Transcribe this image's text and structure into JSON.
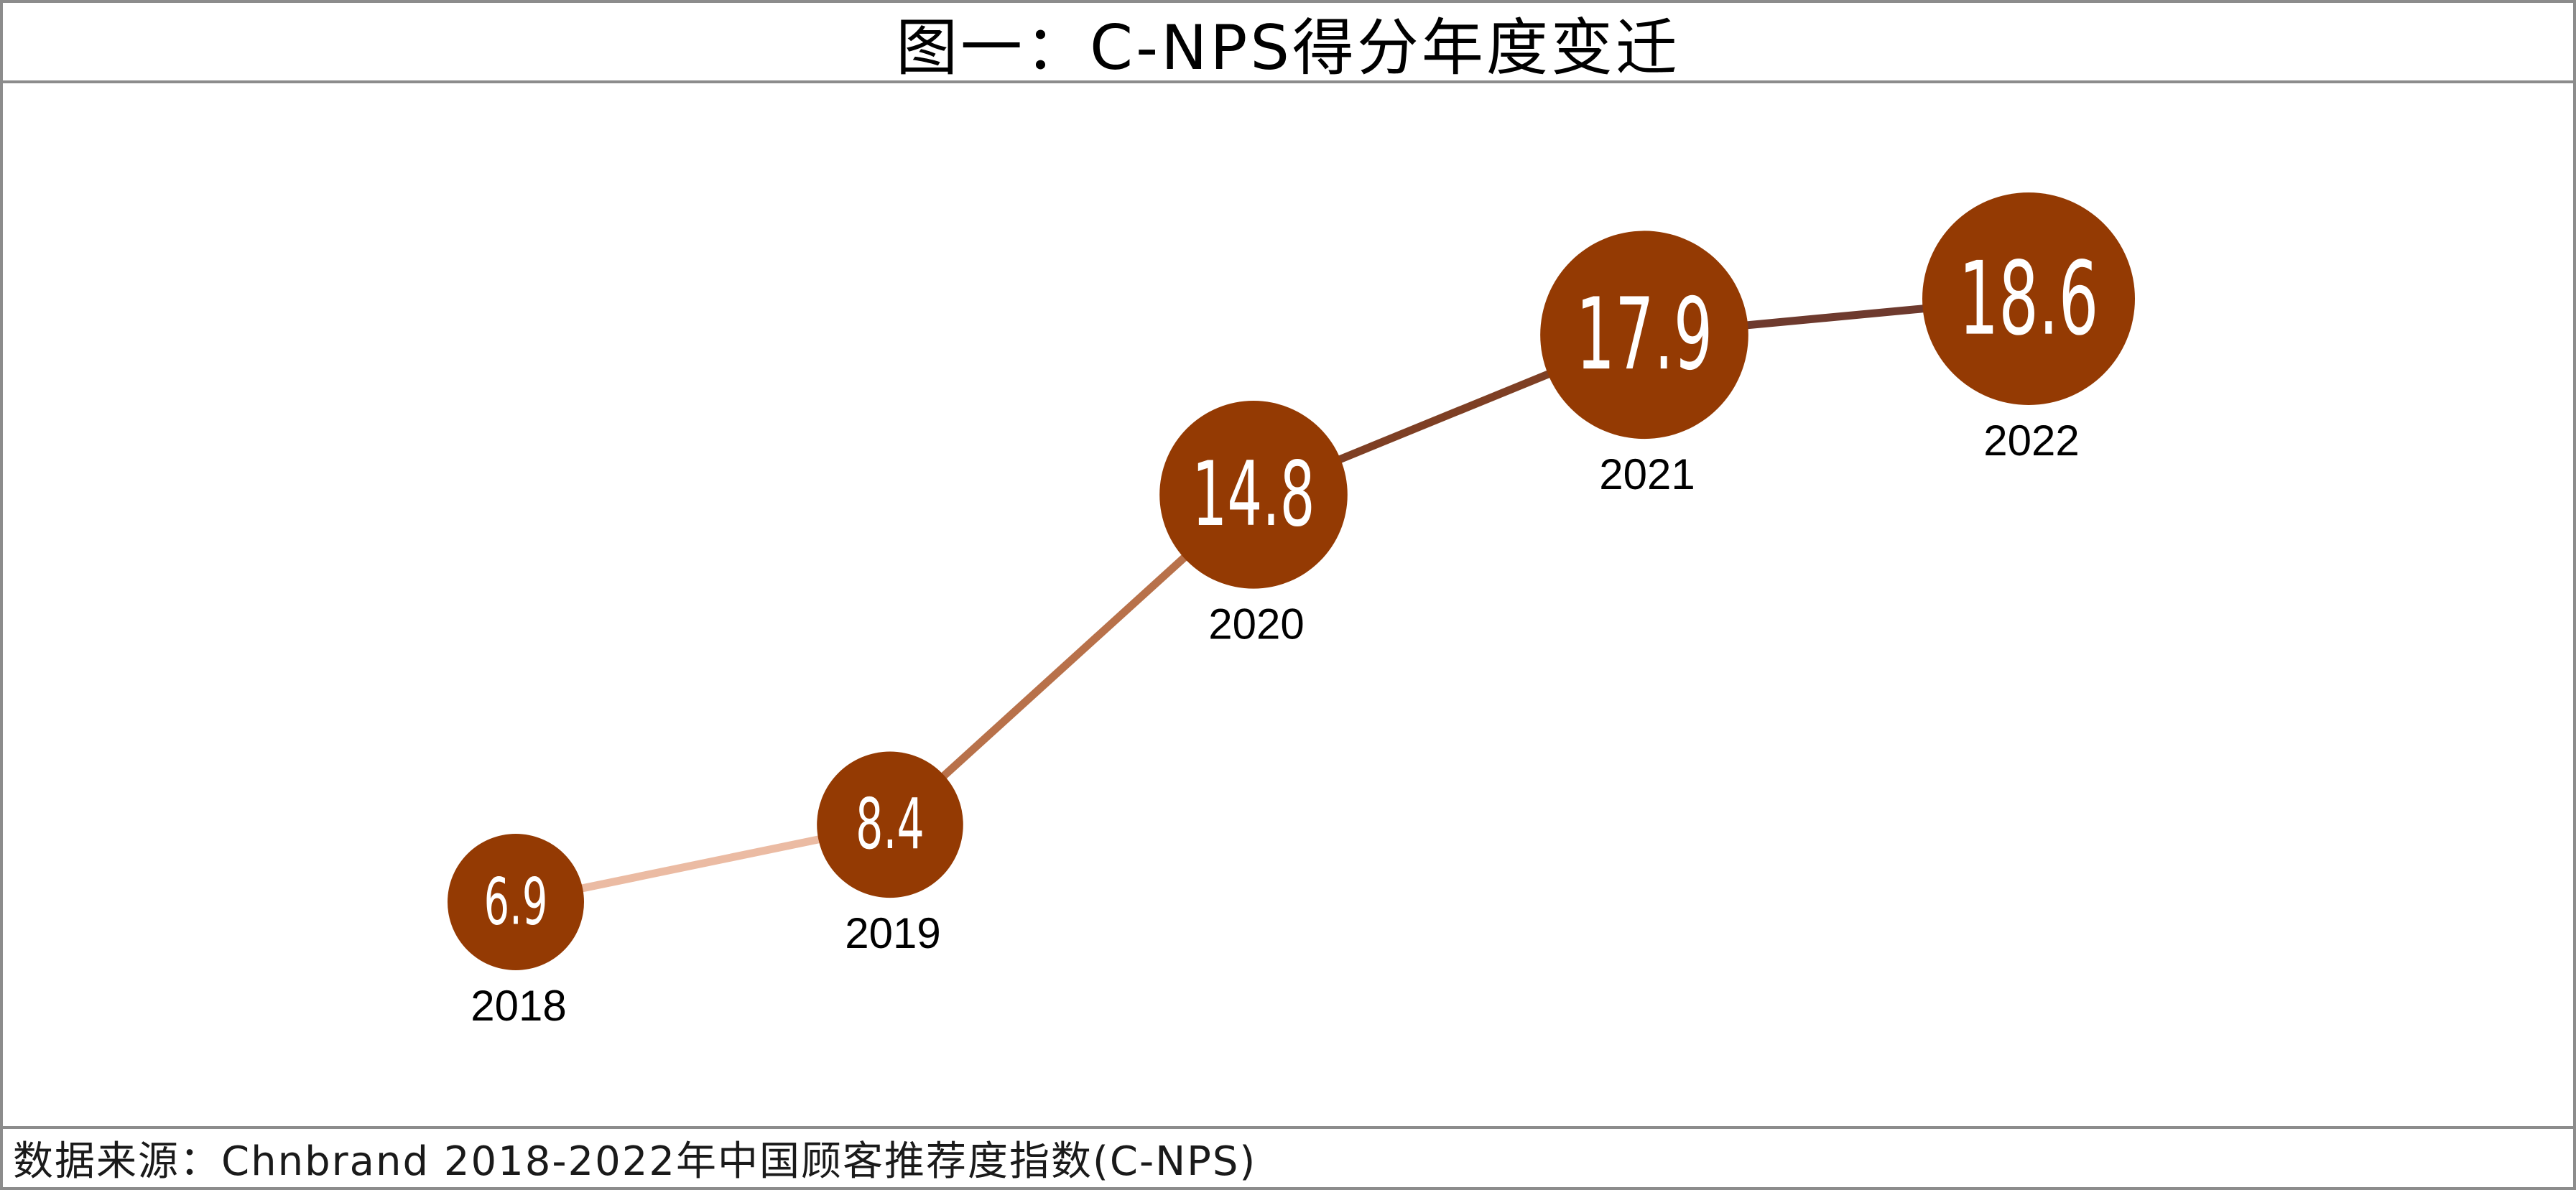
{
  "title": "图一：C-NPS得分年度变迁",
  "source": "数据来源：Chnbrand 2018-2022年中国顾客推荐度指数(C-NPS)",
  "colors": {
    "bubble": "#943a03",
    "segments": [
      "#ebbba3",
      "#b8714a",
      "#7e3f24",
      "#6e3a2e"
    ],
    "border": "#8c8c8c"
  },
  "chart_data": {
    "type": "line",
    "title": "图一：C-NPS得分年度变迁",
    "xlabel": "",
    "ylabel": "",
    "categories": [
      "2018",
      "2019",
      "2020",
      "2021",
      "2022"
    ],
    "values": [
      6.9,
      8.4,
      14.8,
      17.9,
      18.6
    ],
    "value_labels": [
      "6.9",
      "8.4",
      "14.8",
      "17.9",
      "18.6"
    ],
    "bubble_size_encodes_value": true,
    "grid": false,
    "legend": "none"
  }
}
